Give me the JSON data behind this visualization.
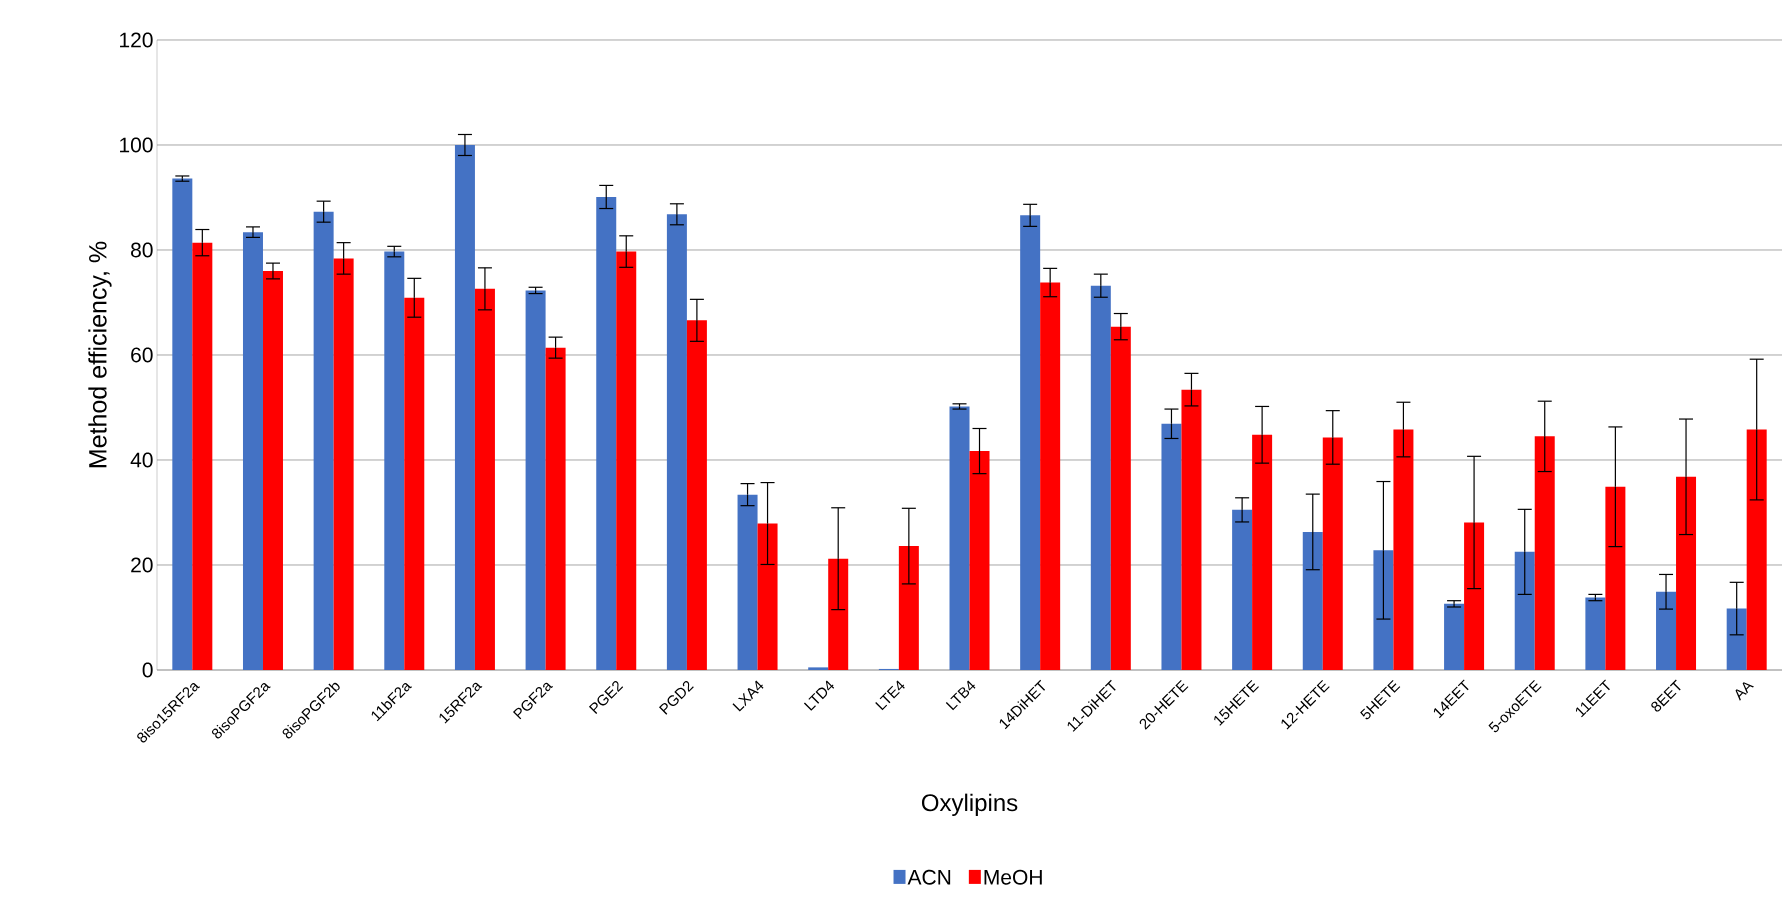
{
  "chart_data": {
    "type": "bar",
    "xlabel": "Oxylipins",
    "ylabel": "Method efficiency, %",
    "categories": [
      "8iso15RF2a",
      "8isoPGF2a",
      "8isoPGF2b",
      "11bF2a",
      "15RF2a",
      "PGF2a",
      "PGE2",
      "PGD2",
      "LXA4",
      "LTD4",
      "LTE4",
      "LTB4",
      "14DiHET",
      "11-DiHET",
      "20-HETE",
      "15HETE",
      "12-HETE",
      "5HETE",
      "14EET",
      "5-oxoETE",
      "11EET",
      "8EET",
      "AA"
    ],
    "series": [
      {
        "name": "ACN",
        "color": "#4472c4",
        "values": [
          93.6,
          83.4,
          87.3,
          79.7,
          100,
          72.3,
          90.1,
          86.8,
          33.4,
          0.5,
          0.2,
          50.2,
          86.6,
          73.2,
          46.9,
          30.5,
          26.3,
          22.8,
          12.6,
          22.5,
          13.8,
          14.9,
          11.7
        ],
        "errors": [
          0.5,
          1,
          2,
          1,
          2,
          0.6,
          2.2,
          2,
          2.1,
          null,
          null,
          0.5,
          2.1,
          2.2,
          2.8,
          2.3,
          7.2,
          13.1,
          0.6,
          8.1,
          0.6,
          3.3,
          5
        ]
      },
      {
        "name": "MeOH",
        "color": "#ff0000",
        "values": [
          81.4,
          76,
          78.4,
          70.9,
          72.6,
          61.4,
          79.7,
          66.6,
          27.9,
          21.2,
          23.6,
          41.7,
          73.8,
          65.4,
          53.4,
          44.8,
          44.3,
          45.8,
          28.1,
          44.5,
          34.9,
          36.8,
          45.8
        ],
        "errors": [
          2.5,
          1.5,
          3,
          3.7,
          4,
          2,
          3,
          4,
          7.8,
          9.7,
          7.2,
          4.3,
          2.7,
          2.5,
          3.1,
          5.4,
          5.1,
          5.2,
          12.6,
          6.7,
          11.4,
          11,
          13.4
        ]
      }
    ],
    "ylim": [
      0,
      120
    ],
    "yticks": [
      0,
      20,
      40,
      60,
      80,
      100,
      120
    ],
    "grid": "y",
    "legend": "bottom"
  }
}
